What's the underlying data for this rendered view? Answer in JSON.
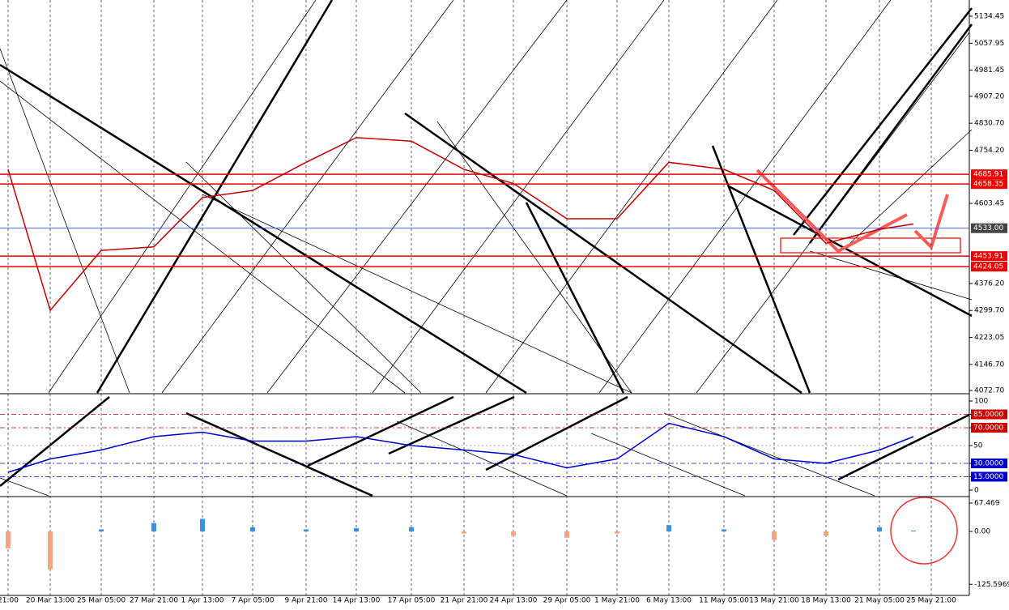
{
  "chart_data": [
    {
      "type": "line",
      "color": "#c00000",
      "categories": [
        "21:00",
        "20 Mar 13:00",
        "25 Mar 05:00",
        "27 Mar 21:00",
        "1 Apr 13:00",
        "7 Apr 05:00",
        "9 Apr 21:00",
        "14 Apr 13:00",
        "17 Apr 05:00",
        "21 Apr 21:00",
        "24 Apr 13:00",
        "29 Apr 05:00",
        "1 May 21:00",
        "6 May 13:00",
        "11 May 05:00",
        "13 May 21:00",
        "18 May 13:00",
        "21 May 05:00",
        "25 May 21:00"
      ],
      "values": [
        4700,
        4300,
        4470,
        4480,
        4620,
        4640,
        4720,
        4790,
        4780,
        4700,
        4660,
        4560,
        4560,
        4720,
        4700,
        4640,
        4490,
        4530,
        4545
      ],
      "ylim": [
        4065.8,
        5180.4
      ],
      "yticks": [
        5134.45,
        5057.95,
        4981.45,
        {
          "value": 4907.2,
          "label": "4907.20"
        },
        {
          "value": 4830.7,
          "label": "4830.70"
        },
        {
          "value": 4754.2,
          "label": "4754.20"
        },
        4603.45,
        {
          "value": 4376.2,
          "label": "4376.20"
        },
        {
          "value": 4299.7,
          "label": "4299.70"
        },
        4223.05,
        {
          "value": 4146.7,
          "label": "4146.70"
        },
        {
          "value": 4072.7,
          "label": "4072.70"
        }
      ],
      "levels": [
        4685.91,
        4658.35,
        4453.91,
        4424.05
      ],
      "current": {
        "value": 4533,
        "label": "4533.00"
      }
    },
    {
      "type": "line",
      "color": "#0000cc",
      "values": [
        20,
        35,
        45,
        60,
        65,
        55,
        55,
        60,
        50,
        45,
        40,
        25,
        35,
        75,
        60,
        35,
        30,
        45,
        60
      ],
      "ylim": [
        -6.4,
        106.4
      ],
      "yticks": [
        100,
        {
          "value": 85,
          "label": "85.0000"
        },
        {
          "value": 70,
          "label": "70.0000"
        },
        50,
        {
          "value": 30,
          "label": "30.0000"
        },
        {
          "value": 15,
          "label": "15.0000"
        },
        0
      ]
    },
    {
      "type": "bar",
      "color": "#3d8fe0",
      "values": [
        -40,
        -90,
        5,
        20,
        30,
        10,
        5,
        8,
        10,
        -5,
        -10,
        -15,
        -5,
        15,
        5,
        -20,
        -10,
        10,
        2
      ],
      "ylim": [
        -152,
        79
      ],
      "yticks": [
        67.469,
        {
          "value": 0,
          "label": "0.00"
        },
        -125.5969
      ]
    }
  ]
}
